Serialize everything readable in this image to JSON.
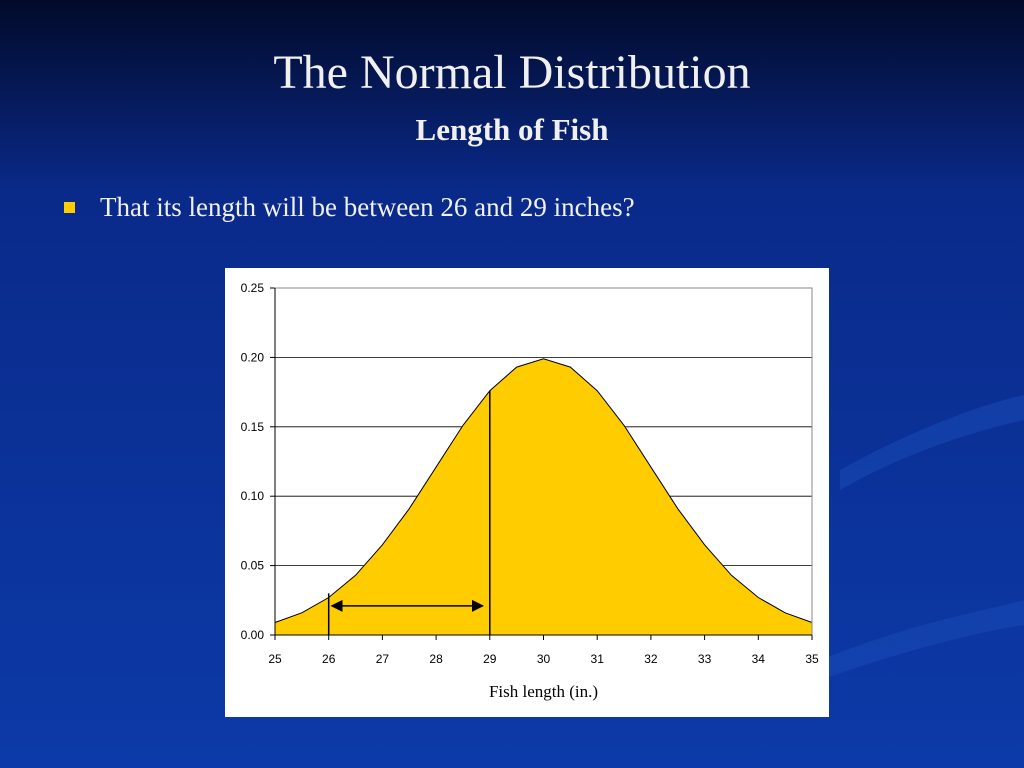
{
  "slide": {
    "title": "The Normal Distribution",
    "subtitle": "Length of Fish",
    "bullets": [
      "That its length will be between 26 and 29 inches?"
    ]
  },
  "chart_data": {
    "type": "area",
    "x": [
      25,
      25.5,
      26,
      26.5,
      27,
      27.5,
      28,
      28.5,
      29,
      29.5,
      30,
      30.5,
      31,
      31.5,
      32,
      32.5,
      33,
      33.5,
      34,
      34.5,
      35
    ],
    "values": [
      0.009,
      0.016,
      0.027,
      0.043,
      0.065,
      0.091,
      0.121,
      0.151,
      0.176,
      0.193,
      0.199,
      0.193,
      0.176,
      0.151,
      0.121,
      0.091,
      0.065,
      0.043,
      0.027,
      0.016,
      0.009
    ],
    "color": "#ffcc00",
    "x_label": "Fish length (in.)",
    "xlim": [
      25,
      35
    ],
    "xticks": [
      25,
      26,
      27,
      28,
      29,
      30,
      31,
      32,
      33,
      34,
      35
    ],
    "ylim": [
      0,
      0.25
    ],
    "yticks": [
      {
        "value": 0,
        "label": "0.00"
      },
      {
        "value": 0.05,
        "label": "0.05"
      },
      {
        "value": 0.1,
        "label": "0.10"
      },
      {
        "value": 0.15,
        "label": "0.15"
      },
      {
        "value": 0.2,
        "label": "0.20"
      },
      {
        "value": 0.25,
        "label": "0.25"
      }
    ],
    "grid": true,
    "markers": [
      {
        "x": 26,
        "y": 0.03
      },
      {
        "x": 29,
        "y": 0.176
      }
    ],
    "arrow": {
      "from": 26,
      "to": 29,
      "y": 0.021
    }
  }
}
